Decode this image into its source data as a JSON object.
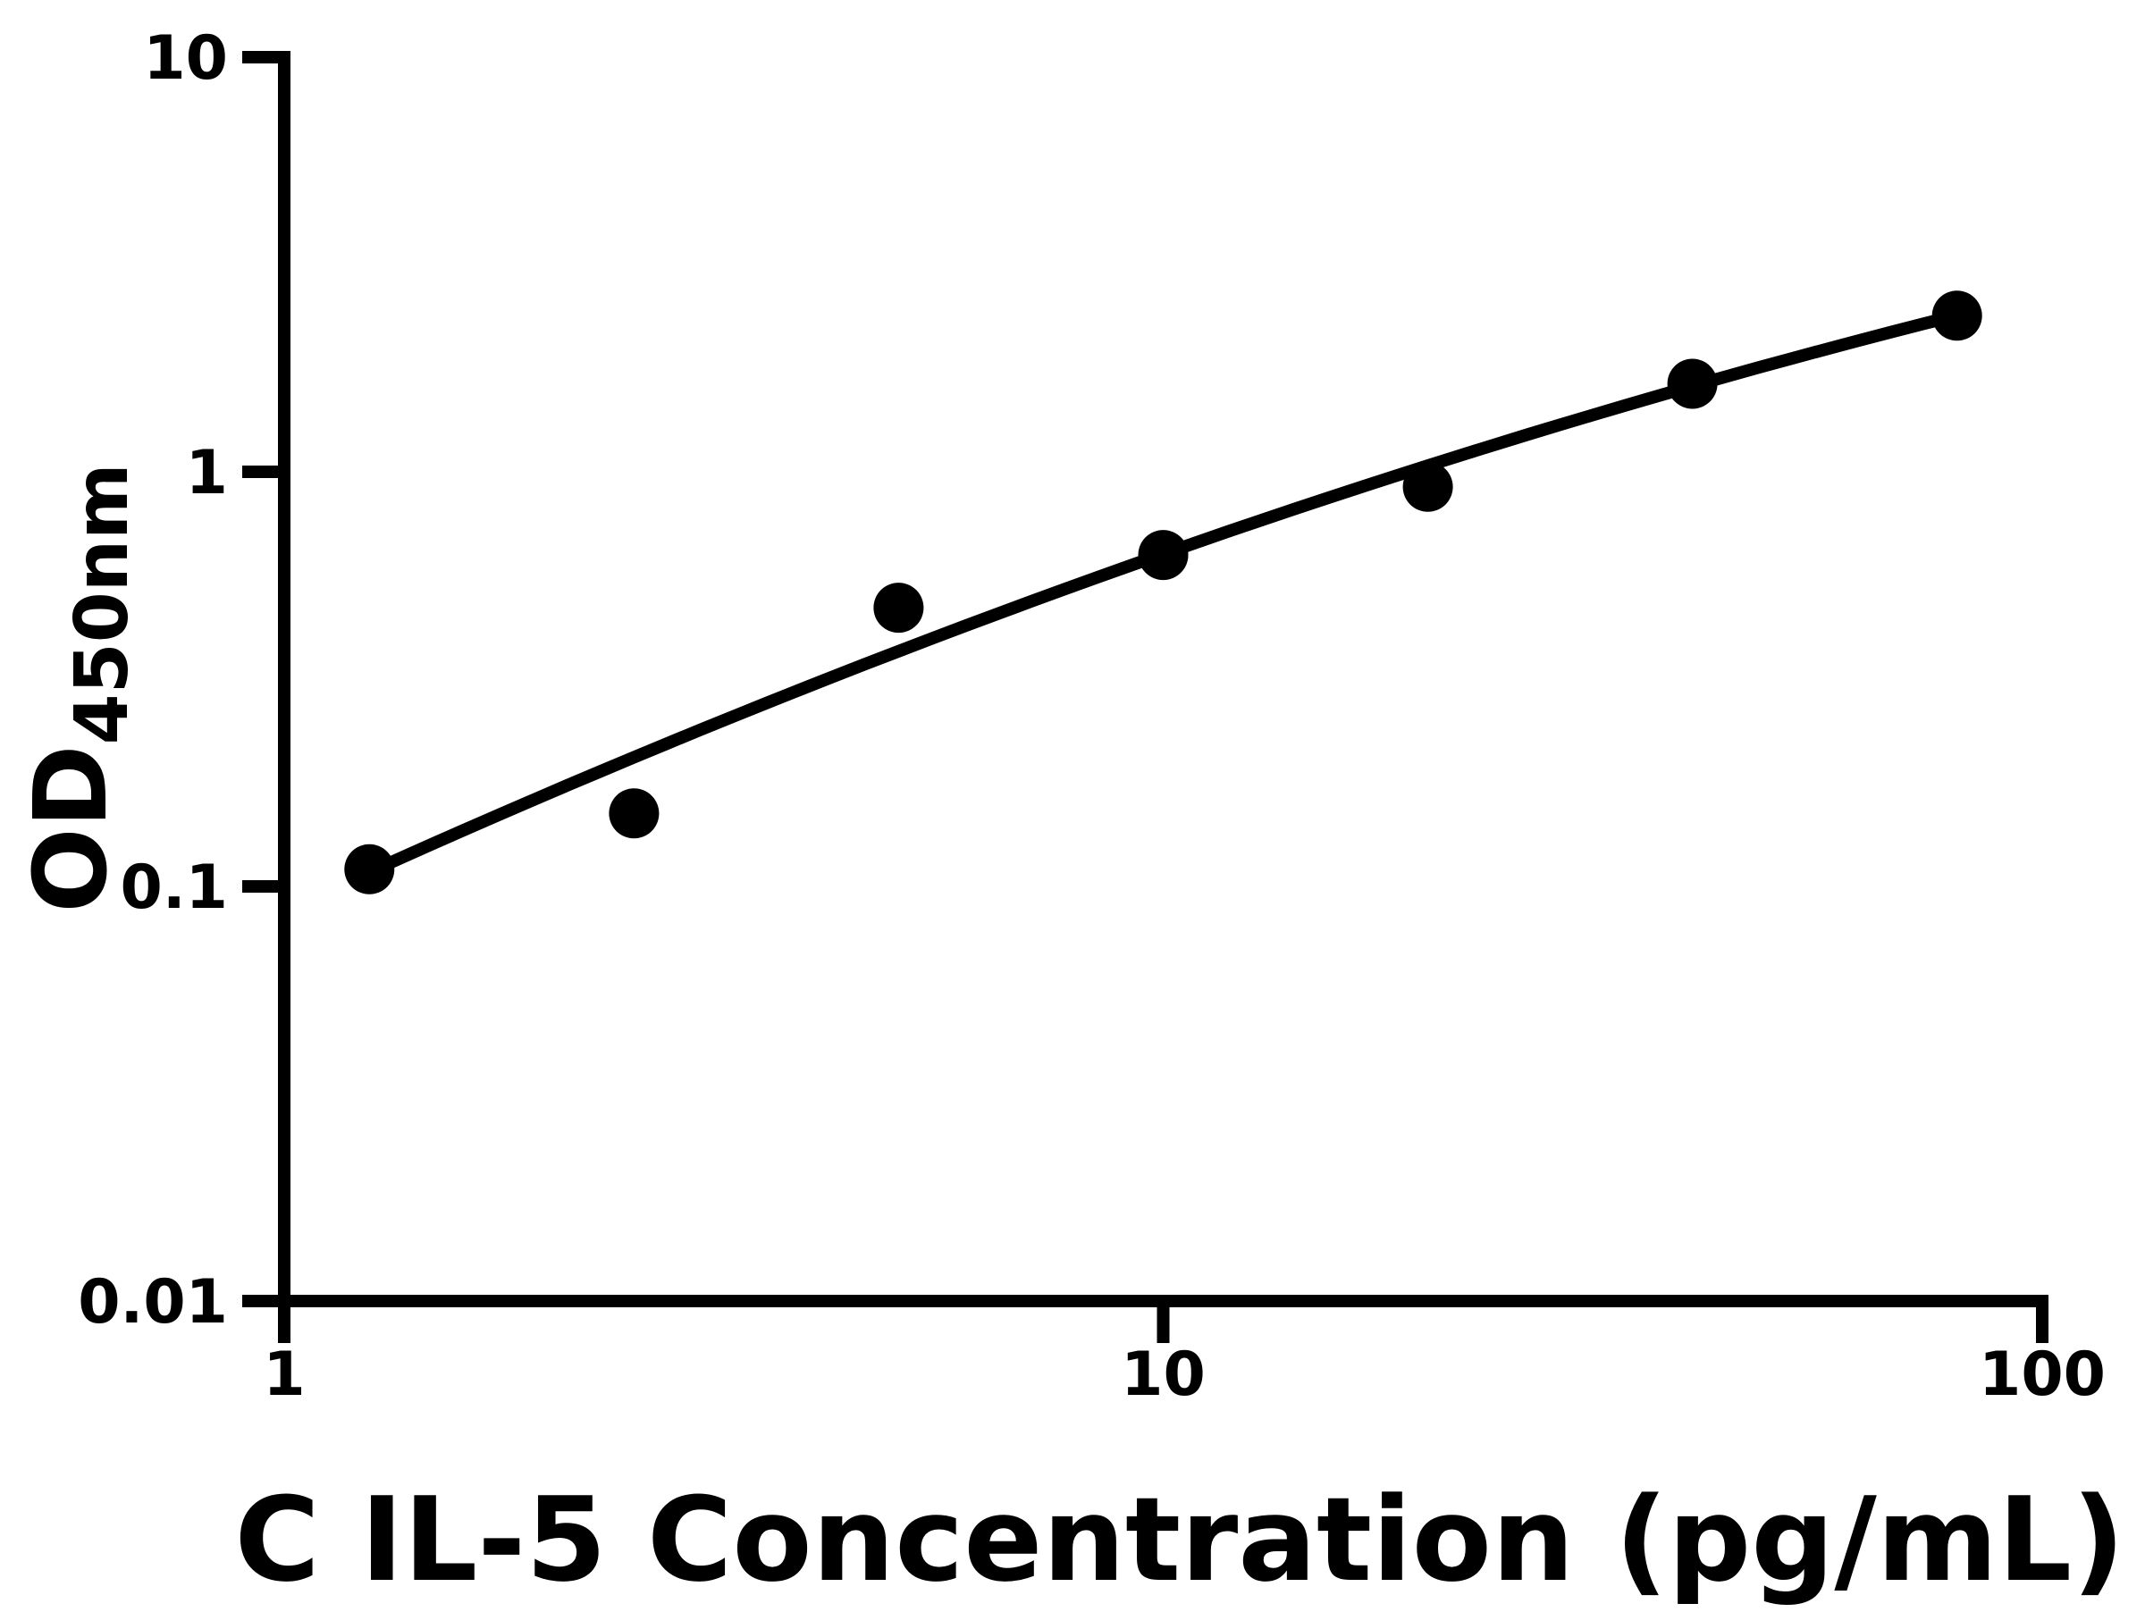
{
  "figure": {
    "background_color": "#ffffff",
    "ink_color": "#000000"
  },
  "chart_data": {
    "type": "scatter",
    "title": "",
    "xlabel": "C IL-5 Concentration (pg/mL)",
    "ylabel": "OD",
    "ylabel_subscript": "450nm",
    "x_scale": "log",
    "y_scale": "log",
    "xlim": [
      1,
      100
    ],
    "ylim": [
      0.01,
      10
    ],
    "x_ticks": [
      1,
      10,
      100
    ],
    "x_tick_labels": [
      "1",
      "10",
      "100"
    ],
    "y_ticks": [
      10,
      1,
      0.1,
      0.01
    ],
    "y_tick_labels": [
      "10",
      "1",
      "0.1",
      "0.01"
    ],
    "grid": false,
    "legend": null,
    "marker": "filled-circle",
    "series": [
      {
        "name": "standard-curve-points",
        "color": "#000000",
        "points": [
          {
            "x": 1.25,
            "y": 0.11
          },
          {
            "x": 2.5,
            "y": 0.15
          },
          {
            "x": 5,
            "y": 0.47
          },
          {
            "x": 10,
            "y": 0.63
          },
          {
            "x": 20,
            "y": 0.92
          },
          {
            "x": 40,
            "y": 1.63
          },
          {
            "x": 80,
            "y": 2.38
          }
        ]
      }
    ],
    "fit_curve": {
      "model": "log10(OD) = a + b*L + c*L^2, where L = log10(concentration)",
      "a": -1.0592,
      "b": 0.9785,
      "c": -0.1175,
      "x_start": 1.25,
      "x_end": 80,
      "color": "#000000"
    }
  }
}
